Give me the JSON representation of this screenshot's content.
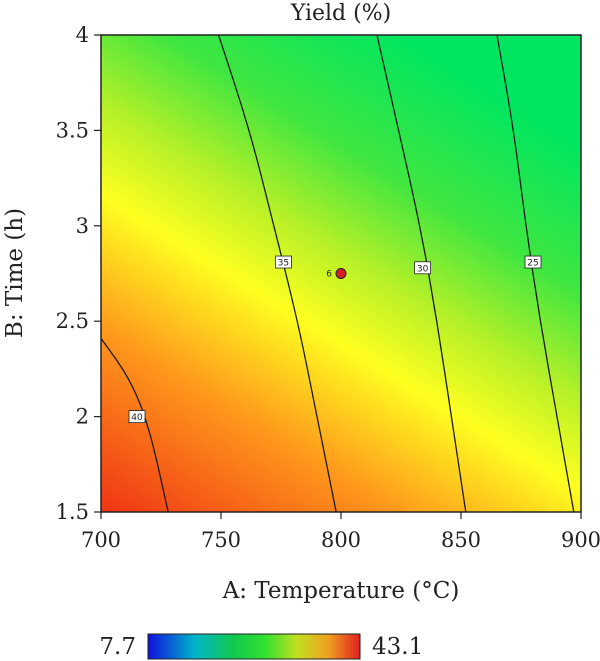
{
  "chart_data": {
    "type": "contour",
    "title": "Yield (%)",
    "xlabel": "A: Temperature (°C)",
    "ylabel": "B: Time (h)",
    "xlim": [
      700,
      900
    ],
    "ylim": [
      1.5,
      4
    ],
    "x_ticks": [
      700,
      750,
      800,
      850,
      900
    ],
    "x_tick_labels": [
      "700",
      "750",
      "800",
      "850",
      "900"
    ],
    "y_ticks": [
      1.5,
      2,
      2.5,
      3,
      3.5,
      4
    ],
    "y_tick_labels": [
      "1.5",
      "2",
      "2.5",
      "3",
      "3.5",
      "4"
    ],
    "contours": [
      {
        "label": "40",
        "label_pos": [
          715,
          2.0
        ],
        "points": [
          [
            700,
            2.41
          ],
          [
            712,
            2.2
          ],
          [
            720,
            1.95
          ],
          [
            728,
            1.5
          ]
        ]
      },
      {
        "label": "35",
        "label_pos": [
          776,
          2.81
        ],
        "points": [
          [
            749,
            4.0
          ],
          [
            762,
            3.5
          ],
          [
            772,
            3.0
          ],
          [
            782,
            2.5
          ],
          [
            790,
            2.0
          ],
          [
            798,
            1.5
          ]
        ]
      },
      {
        "label": "30",
        "label_pos": [
          834,
          2.78
        ],
        "points": [
          [
            815,
            4.0
          ],
          [
            824,
            3.5
          ],
          [
            833,
            3.0
          ],
          [
            840,
            2.5
          ],
          [
            846,
            2.0
          ],
          [
            852,
            1.5
          ]
        ]
      },
      {
        "label": "25",
        "label_pos": [
          880,
          2.81
        ],
        "points": [
          [
            865,
            4.0
          ],
          [
            872,
            3.5
          ],
          [
            877,
            3.0
          ],
          [
            883,
            2.5
          ],
          [
            890,
            2.0
          ],
          [
            897,
            1.5
          ]
        ]
      }
    ],
    "design_point": {
      "x": 800,
      "y": 2.75,
      "label": "6",
      "color": "#d42020"
    },
    "legend": {
      "min_label": "7.7",
      "max_label": "43.1",
      "min": 7.7,
      "max": 43.1
    },
    "colors": {
      "high": "#f03c14",
      "mid_high": "#ffa020",
      "mid": "#ffff1e",
      "mid_low": "#78e628",
      "low": "#00e65a",
      "legend_low": "#1020e6",
      "legend_mid": "#00c8a0"
    }
  }
}
